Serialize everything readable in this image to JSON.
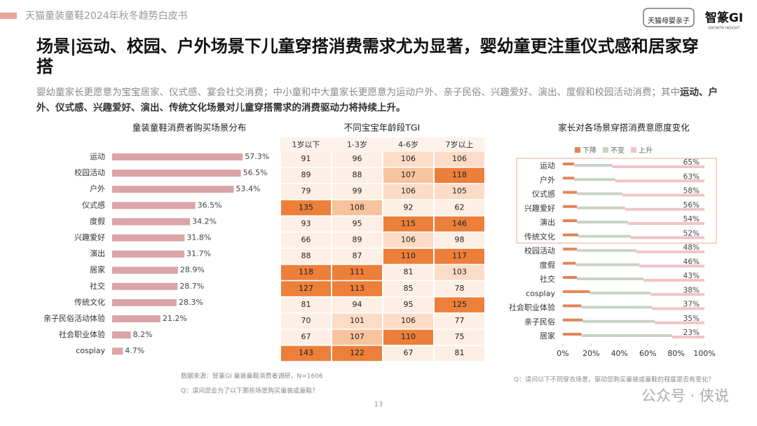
{
  "header": {
    "report_title": "天猫童装童鞋2024年秋冬趋势白皮书",
    "logo_tmall": "天猫母婴亲子",
    "logo_brand": "智篆GI",
    "logo_brand_sub": "GROWTH INSIGHT"
  },
  "title": "场景|运动、校园、户外场景下儿童穿搭消费需求尤为显著，婴幼童更注重仪式感和居家穿搭",
  "subtitle": {
    "text": "婴幼童家长更愿意为宝宝居家、仪式感、宴会社交消费；中小童和中大童家长更愿意为运动户外、亲子民俗、兴趣爱好、演出、度假和校园活动消费；其中",
    "emphasis": "运动、户外、仪式感、兴趣爱好、演出、传统文化场景对儿童穿搭需求的消费驱动力将持续上升。"
  },
  "chart_data": [
    {
      "type": "bar",
      "orientation": "horizontal",
      "title": "童装童鞋消费者购买场景分布",
      "color": "#dba4a6",
      "categories": [
        "运动",
        "校园活动",
        "户外",
        "仪式感",
        "度假",
        "兴趣爱好",
        "演出",
        "居家",
        "社交",
        "传统文化",
        "亲子民俗活动体验",
        "社会职业体验",
        "cosplay"
      ],
      "values": [
        57.3,
        56.5,
        53.4,
        36.5,
        34.2,
        31.8,
        31.7,
        28.9,
        28.7,
        28.3,
        21.2,
        8.2,
        4.7
      ],
      "value_labels": [
        "57.3%",
        "56.5%",
        "53.4%",
        "36.5%",
        "34.2%",
        "31.8%",
        "31.7%",
        "28.9%",
        "28.7%",
        "28.3%",
        "21.2%",
        "8.2%",
        "4.7%"
      ]
    },
    {
      "type": "stacked_bar",
      "orientation": "horizontal",
      "title": "家长对各场景穿搭消费意愿度变化",
      "categories": [
        "运动",
        "户外",
        "仪式感",
        "兴趣爱好",
        "演出",
        "传统文化",
        "校园活动",
        "度假",
        "社交",
        "cosplay",
        "社会职业体验",
        "亲子民俗",
        "居家"
      ],
      "series": [
        {
          "name": "下降",
          "color": "#e0855a",
          "values": [
            8,
            8,
            10,
            10,
            10,
            11,
            10,
            9,
            10,
            19,
            13,
            14,
            13
          ]
        },
        {
          "name": "不变",
          "color": "#c9d3c4",
          "values": [
            27,
            29,
            32,
            34,
            36,
            37,
            42,
            45,
            47,
            43,
            50,
            51,
            64
          ]
        },
        {
          "name": "上升",
          "color": "#f2c4c6",
          "values": [
            65,
            63,
            58,
            56,
            54,
            52,
            48,
            46,
            43,
            38,
            37,
            35,
            23
          ],
          "value_labels": [
            "65%",
            "63%",
            "58%",
            "56%",
            "54%",
            "52%",
            "48%",
            "46%",
            "43%",
            "38%",
            "37%",
            "35%",
            "23%"
          ]
        }
      ],
      "xlim": [
        0,
        100
      ],
      "xticks": [
        {
          "value": 0,
          "label": "0%"
        },
        {
          "value": 20,
          "label": "20%"
        },
        {
          "value": 40,
          "label": "40%"
        },
        {
          "value": 60,
          "label": "60%"
        },
        {
          "value": 80,
          "label": "80%"
        },
        {
          "value": 100,
          "label": "100%"
        }
      ],
      "legend": "top"
    }
  ],
  "table": {
    "title": "不同宝宝年龄段TGI",
    "columns": [
      "1岁以下",
      "1-3岁",
      "4-6岁",
      "7岁以上"
    ],
    "rows": [
      [
        91,
        96,
        106,
        106
      ],
      [
        89,
        88,
        107,
        118
      ],
      [
        79,
        99,
        106,
        105
      ],
      [
        135,
        108,
        92,
        62
      ],
      [
        93,
        95,
        115,
        146
      ],
      [
        66,
        89,
        106,
        98
      ],
      [
        88,
        87,
        110,
        117
      ],
      [
        118,
        111,
        81,
        103
      ],
      [
        127,
        113,
        85,
        78
      ],
      [
        81,
        94,
        95,
        125
      ],
      [
        70,
        101,
        106,
        77
      ],
      [
        67,
        107,
        110,
        75
      ],
      [
        143,
        122,
        67,
        81
      ]
    ]
  },
  "footer": {
    "source": "数据来源：智篆GI 童装童鞋消费者调研，N=1606",
    "question_left": "Q：请问您会为了以下那些场景购买童装或童鞋？",
    "question_right": "Q：请问以下不同穿衣场景，驱动您购买童装或童鞋的程度是否有变化？",
    "page_number": "13",
    "watermark": "公众号 · 侠说"
  }
}
